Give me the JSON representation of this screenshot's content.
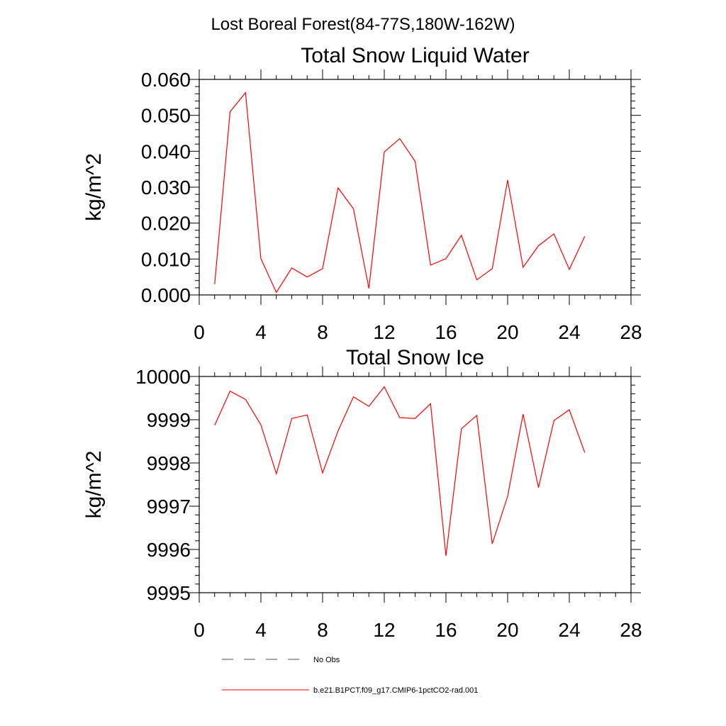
{
  "figure_title": "Lost Boreal Forest(84-77S,180W-162W)",
  "legend": [
    {
      "label": "No Obs",
      "style": "dashed",
      "color": "#4a4a7a"
    },
    {
      "label": "b.e21.B1PCT.f09_g17.CMIP6-1pctCO2-rad.001",
      "style": "solid",
      "color": "#ff0000"
    }
  ],
  "chart_data": [
    {
      "type": "line",
      "title": "Total Snow Liquid Water",
      "xlabel": "",
      "ylabel": "kg/m^2",
      "xlim": [
        0,
        28
      ],
      "ylim": [
        0.0,
        0.06
      ],
      "xticks": [
        0,
        4,
        8,
        12,
        16,
        20,
        24,
        28
      ],
      "yticks": [
        0.0,
        0.01,
        0.02,
        0.03,
        0.04,
        0.05,
        0.06
      ],
      "xtick_labels": [
        "0",
        "4",
        "8",
        "12",
        "16",
        "20",
        "24",
        "28"
      ],
      "ytick_labels": [
        "0.000",
        "0.010",
        "0.020",
        "0.030",
        "0.040",
        "0.050",
        "0.060"
      ],
      "series": [
        {
          "name": "b.e21.B1PCT.f09_g17.CMIP6-1pctCO2-rad.001",
          "color": "#ff0000",
          "x": [
            1,
            2,
            3,
            4,
            5,
            6,
            7,
            8,
            9,
            10,
            11,
            12,
            13,
            14,
            15,
            16,
            17,
            18,
            19,
            20,
            21,
            22,
            23,
            24,
            25
          ],
          "y": [
            0.003,
            0.051,
            0.0563,
            0.0101,
            0.0007,
            0.0075,
            0.005,
            0.0073,
            0.0298,
            0.024,
            0.0018,
            0.0398,
            0.0435,
            0.0372,
            0.0083,
            0.0101,
            0.0166,
            0.0042,
            0.0073,
            0.032,
            0.0077,
            0.0137,
            0.017,
            0.0071,
            0.0163
          ]
        }
      ]
    },
    {
      "type": "line",
      "title": "Total Snow Ice",
      "xlabel": "",
      "ylabel": "kg/m^2",
      "xlim": [
        0,
        28
      ],
      "ylim": [
        9995,
        10000
      ],
      "xticks": [
        0,
        4,
        8,
        12,
        16,
        20,
        24,
        28
      ],
      "yticks": [
        9995,
        9996,
        9997,
        9998,
        9999,
        10000
      ],
      "xtick_labels": [
        "0",
        "4",
        "8",
        "12",
        "16",
        "20",
        "24",
        "28"
      ],
      "ytick_labels": [
        "9995",
        "9996",
        "9997",
        "9998",
        "9999",
        "10000"
      ],
      "series": [
        {
          "name": "b.e21.B1PCT.f09_g17.CMIP6-1pctCO2-rad.001",
          "color": "#ff0000",
          "x": [
            1,
            2,
            3,
            4,
            5,
            6,
            7,
            8,
            9,
            10,
            11,
            12,
            13,
            14,
            15,
            16,
            17,
            18,
            19,
            20,
            21,
            22,
            23,
            24,
            25
          ],
          "y": [
            9998.87,
            9999.66,
            9999.47,
            9998.88,
            9997.75,
            9999.03,
            9999.11,
            9997.77,
            9998.74,
            9999.53,
            9999.31,
            9999.76,
            9999.05,
            9999.03,
            9999.37,
            9995.85,
            9998.79,
            9999.1,
            9996.13,
            9997.23,
            9999.13,
            9997.43,
            9998.98,
            9999.23,
            9998.24
          ]
        }
      ]
    }
  ]
}
